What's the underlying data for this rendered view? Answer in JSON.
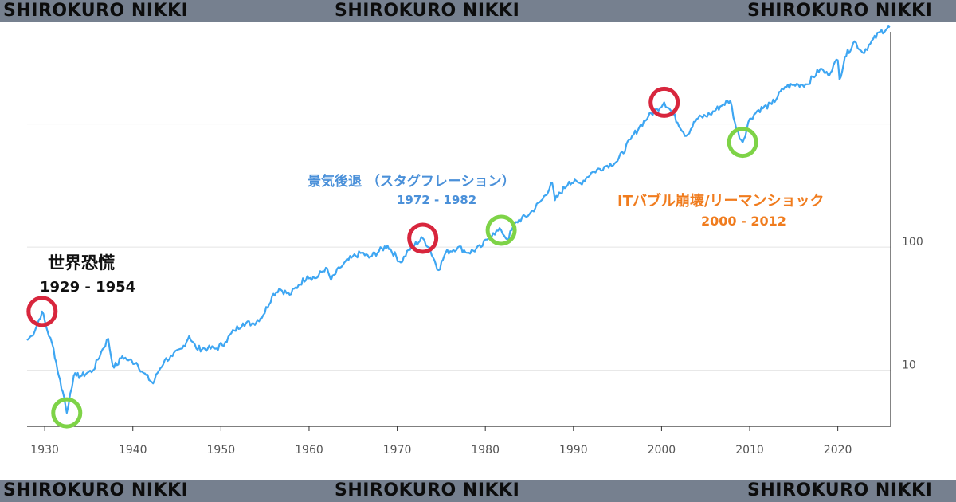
{
  "watermark": {
    "left": "SHIROKURO NIKKI",
    "center": "SHIROKURO NIKKI",
    "right": "SHIROKURO NIKKI",
    "color": "#76808f"
  },
  "annotations": {
    "great_depression": {
      "title": "世界恐慌",
      "period": "1929 - 1954",
      "color": "#111111"
    },
    "stagflation": {
      "title": "景気後退 （スタグフレーション）",
      "period": "1972 - 1982",
      "color": "#4a90d9"
    },
    "it_bubble": {
      "title": "ITバブル崩壊/リーマンショック",
      "period": "2000 - 2012",
      "color": "#f07c1e"
    }
  },
  "markers": {
    "peak_color": "#d8263d",
    "trough_color": "#7ed347",
    "peaks": [
      {
        "x": 1929.7,
        "y": 30
      },
      {
        "x": 1972.9,
        "y": 118
      },
      {
        "x": 2000.3,
        "y": 1500
      }
    ],
    "troughs": [
      {
        "x": 1932.5,
        "y": 4.5
      },
      {
        "x": 1981.8,
        "y": 137
      },
      {
        "x": 2009.2,
        "y": 710
      }
    ]
  },
  "chart_data": {
    "type": "line",
    "scale": "log",
    "xlim": [
      1928,
      2026
    ],
    "ylim": [
      3.5,
      6500
    ],
    "x_ticks": [
      1930,
      1940,
      1950,
      1960,
      1970,
      1980,
      1990,
      2000,
      2010,
      2020
    ],
    "y_ticks": [
      {
        "value": 10,
        "label": "10"
      },
      {
        "value": 100,
        "label": "100"
      }
    ],
    "y_gridlines": [
      10,
      100,
      1000
    ],
    "grid": "horizontal",
    "line_color": "#3ea6f2",
    "series": [
      {
        "x": [
          1928.0,
          1928.5,
          1929.0,
          1929.7,
          1930.3,
          1931.0,
          1931.6,
          1932.2,
          1932.5,
          1932.9,
          1933.3,
          1933.6,
          1934.2,
          1934.8,
          1935.5,
          1936.4,
          1937.2,
          1937.7,
          1938.2,
          1938.8,
          1939.5,
          1940.4,
          1941.2,
          1942.3,
          1942.8,
          1943.6,
          1944.5,
          1945.6,
          1946.4,
          1947.2,
          1948.5,
          1949.5,
          1950.5,
          1951.5,
          1952.5,
          1953.7,
          1954.8,
          1955.8,
          1956.6,
          1957.8,
          1958.8,
          1959.8,
          1960.8,
          1961.9,
          1962.5,
          1963.5,
          1964.8,
          1966.0,
          1966.8,
          1968.9,
          1970.4,
          1971.3,
          1972.9,
          1973.6,
          1974.7,
          1975.5,
          1976.9,
          1978.1,
          1979.5,
          1980.2,
          1980.9,
          1981.8,
          1982.5,
          1983.5,
          1985.0,
          1986.5,
          1987.6,
          1987.9,
          1989.5,
          1990.8,
          1992.0,
          1993.5,
          1995.0,
          1996.5,
          1997.5,
          1998.5,
          1999.5,
          2000.3,
          2001.0,
          2002.8,
          2004.0,
          2005.5,
          2007.0,
          2007.8,
          2008.5,
          2009.2,
          2010.0,
          2011.0,
          2012.5,
          2014.0,
          2015.5,
          2016.5,
          2018.0,
          2018.9,
          2019.5,
          2020.0,
          2020.2,
          2020.8,
          2021.9,
          2022.8,
          2023.7,
          2024.8,
          2025.9
        ],
        "y": [
          17.5,
          19,
          22,
          30,
          21,
          15,
          9,
          6,
          4.5,
          6.5,
          9,
          9,
          9,
          9.5,
          10,
          14,
          18,
          11,
          11,
          13,
          12,
          11.5,
          9.5,
          7.8,
          9.5,
          12,
          13,
          15,
          19,
          15,
          15,
          15,
          17,
          21,
          24,
          24,
          28,
          40,
          46,
          41,
          49,
          58,
          56,
          68,
          54,
          68,
          82,
          90,
          82,
          103,
          75,
          95,
          118,
          100,
          65,
          90,
          100,
          90,
          100,
          115,
          130,
          137,
          115,
          160,
          185,
          245,
          330,
          240,
          340,
          330,
          400,
          450,
          500,
          750,
          950,
          1150,
          1320,
          1500,
          1300,
          800,
          1100,
          1200,
          1450,
          1550,
          900,
          710,
          1100,
          1300,
          1450,
          2000,
          2100,
          2100,
          2800,
          2500,
          3000,
          3300,
          2300,
          3500,
          4700,
          3800,
          4500,
          5600,
          6100
        ]
      }
    ]
  }
}
